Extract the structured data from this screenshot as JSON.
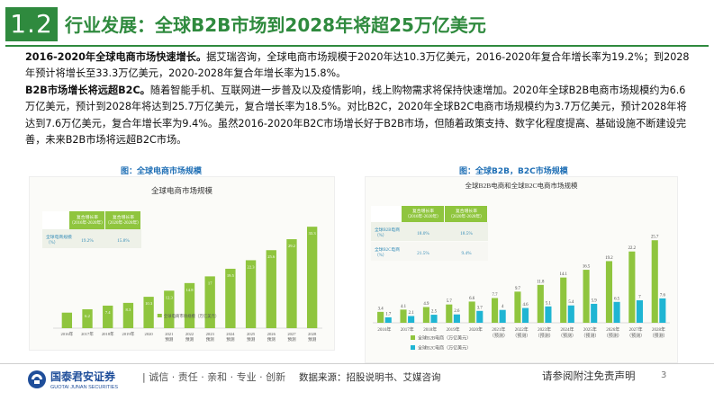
{
  "header": {
    "section_number": "1.2",
    "title": "行业发展：全球B2B市场到2028年将超25万亿美元"
  },
  "body": {
    "p1_bold": "2016-2020年全球电商市场快速增长。",
    "p1_text": "据艾瑞咨询，全球电商市场规模于2020年达10.3万亿美元，2016-2020年复合年增长率为19.2%；到2028年预计将增长至33.3万亿美元，2020-2028年复合年增长率为15.8%。",
    "p2_bold": "B2B市场增长将远超B2C。",
    "p2_text": "随着智能手机、互联网进一步普及以及疫情影响，线上购物需求将保持快速增加。2020年全球B2B电商市场规模约为6.6万亿美元，预计到2028年将达到25.7万亿美元，复合增长率为18.5%。对比B2C，2020年全球B2C电商市场规模约为3.7万亿美元，预计2028年将达到7.6万亿美元，复合年增长率为9.4%。虽然2016-2020年B2C市场增长好于B2B市场，但随着政策支持、数字化程度提高、基础设施不断建设完善，未来B2B市场将远超B2C市场。"
  },
  "captions": {
    "left": "图：全球电商市场规模",
    "right": "图：全球B2B，B2C市场规模"
  },
  "chart_data": [
    {
      "type": "bar",
      "title": "全球电商市场规模",
      "categories": [
        "2016年",
        "2017年",
        "2018年",
        "2019年",
        "2020年",
        "2021预测",
        "2022预测",
        "2023预测",
        "2024预测",
        "2025预测",
        "2026预测",
        "2027预测",
        "2028预测"
      ],
      "x_labels_top": [
        "2016年",
        "2017年",
        "2018年",
        "2019年",
        "2020",
        "2021",
        "2022",
        "2023",
        "2024",
        "2025",
        "2026",
        "2027",
        "2028"
      ],
      "x_labels_bottom": [
        "",
        "",
        "",
        "",
        "",
        "预测",
        "预测",
        "预测",
        "预测",
        "预测",
        "预测",
        "预测",
        "预测"
      ],
      "values": [
        5.1,
        6.2,
        7.4,
        8.3,
        10.3,
        12.3,
        14.8,
        17.0,
        19.5,
        22.3,
        25.6,
        29.2,
        33.3
      ],
      "value_labels_visible": [
        false,
        true,
        true,
        true,
        true,
        true,
        true,
        true,
        true,
        true,
        true,
        true,
        true
      ],
      "ylim": [
        0,
        36
      ],
      "legend": "全球电商市场规模（万亿美元）",
      "cagr_table": {
        "headers": [
          "复合增长率（2016年-2020年）",
          "复合增长率（2020年-2028年）"
        ],
        "rows": [
          {
            "label": "全球电商规模（%）",
            "values": [
              "19.2%",
              "15.8%"
            ]
          }
        ]
      },
      "colors": {
        "bar": "#8fc53e",
        "header": "#8fc53e"
      }
    },
    {
      "type": "bar",
      "title": "全球B2B电商和全球B2C电商市场规模",
      "categories": [
        "2016年",
        "2017年",
        "2018年",
        "2019年",
        "2020年",
        "2021年（预测）",
        "2022年（预测）",
        "2023年（预测）",
        "2024年（预测）",
        "2025年（预测）",
        "2026年（预测）",
        "2027年（预测）",
        "2028年（预测）"
      ],
      "x_labels_top": [
        "2016年",
        "2017年",
        "2018年",
        "2019年",
        "2020年",
        "2021年",
        "2022年",
        "2023年",
        "2024年",
        "2025年",
        "2026年",
        "2027年",
        "2028年"
      ],
      "x_labels_bottom": [
        "",
        "",
        "",
        "",
        "",
        "（预测）",
        "（预测）",
        "（预测）",
        "（预测）",
        "（预测）",
        "（预测）",
        "（预测）",
        "（预测）"
      ],
      "series": [
        {
          "name": "全球B2B电商（万亿美元）",
          "values": [
            3.4,
            4.1,
            4.9,
            5.7,
            6.6,
            7.7,
            9.7,
            11.8,
            14.1,
            16.5,
            19.2,
            22.2,
            25.7
          ]
        },
        {
          "name": "全球B2C电商（万亿美元）",
          "values": [
            1.7,
            2.1,
            2.5,
            2.6,
            3.7,
            4.0,
            4.6,
            5.1,
            5.4,
            5.9,
            6.5,
            7.0,
            7.6
          ]
        }
      ],
      "ylim": [
        0,
        28
      ],
      "cagr_table": {
        "headers": [
          "复合增长率（2016年-2020年）",
          "复合增长率（2020年-2028年）"
        ],
        "rows": [
          {
            "label": "全球B2B电商（%）",
            "values": [
              "18.0%",
              "18.5%"
            ]
          },
          {
            "label": "全球B2C电商（%）",
            "values": [
              "21.5%",
              "9.4%"
            ]
          }
        ]
      },
      "colors": {
        "b2b": "#8fc53e",
        "b2c": "#1fb5d3",
        "header": "#8fc53e"
      }
    }
  ],
  "footer": {
    "logo_cn": "国泰君安证券",
    "logo_en": "GUOTAI JUNAN SECURITIES",
    "slogan": "诚信 · 责任 · 亲和 · 专业 · 创新",
    "source": "数据来源：招股说明书、艾媒咨询",
    "disclaimer": "请参阅附注免责声明",
    "page": "3"
  }
}
